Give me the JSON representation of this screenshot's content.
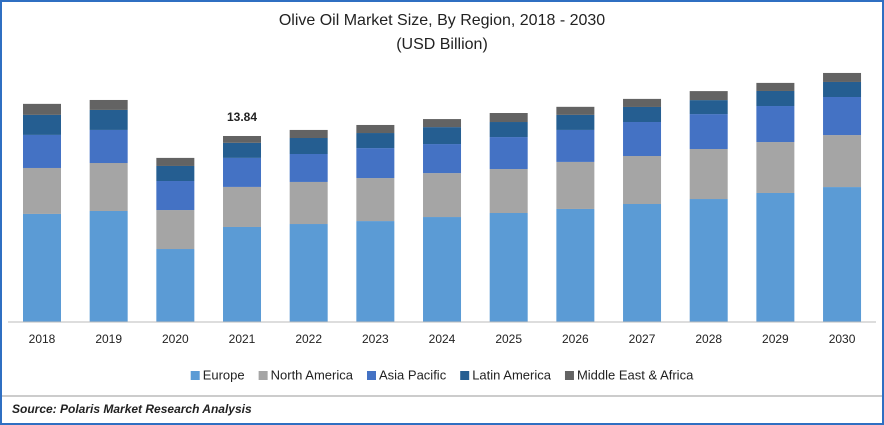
{
  "chart_data": {
    "type": "stacked_bar",
    "title": "Olive Oil Market Size, By Region, 2018 - 2030",
    "subtitle": "(USD Billion)",
    "categories": [
      "2018",
      "2019",
      "2020",
      "2021",
      "2022",
      "2023",
      "2024",
      "2025",
      "2026",
      "2027",
      "2028",
      "2029",
      "2030"
    ],
    "series": [
      {
        "name": "Europe",
        "color": "#5b9bd5",
        "values": [
          8.04,
          8.26,
          5.43,
          7.07,
          7.29,
          7.51,
          7.81,
          8.11,
          8.41,
          8.78,
          9.15,
          9.6,
          10.04
        ]
      },
      {
        "name": "North America",
        "color": "#a5a5a5",
        "values": [
          3.42,
          3.57,
          2.9,
          2.98,
          3.13,
          3.2,
          3.27,
          3.27,
          3.5,
          3.57,
          3.72,
          3.79,
          3.87
        ]
      },
      {
        "name": "Asia Pacific",
        "color": "#4472c4",
        "values": [
          2.46,
          2.46,
          2.16,
          2.16,
          2.08,
          2.23,
          2.16,
          2.38,
          2.38,
          2.53,
          2.6,
          2.68,
          2.83
        ]
      },
      {
        "name": "Latin America",
        "color": "#255e91",
        "values": [
          1.49,
          1.49,
          1.12,
          1.12,
          1.19,
          1.12,
          1.26,
          1.12,
          1.12,
          1.12,
          1.04,
          1.12,
          1.12
        ]
      },
      {
        "name": "Middle East & Africa",
        "color": "#636363",
        "values": [
          0.82,
          0.74,
          0.6,
          0.51,
          0.6,
          0.6,
          0.6,
          0.67,
          0.6,
          0.6,
          0.67,
          0.6,
          0.67
        ]
      }
    ],
    "ylim": [
      0,
      20
    ],
    "annotations": [
      {
        "x": "2021",
        "value": 13.84
      }
    ],
    "source": "Source: Polaris Market Research Analysis"
  }
}
